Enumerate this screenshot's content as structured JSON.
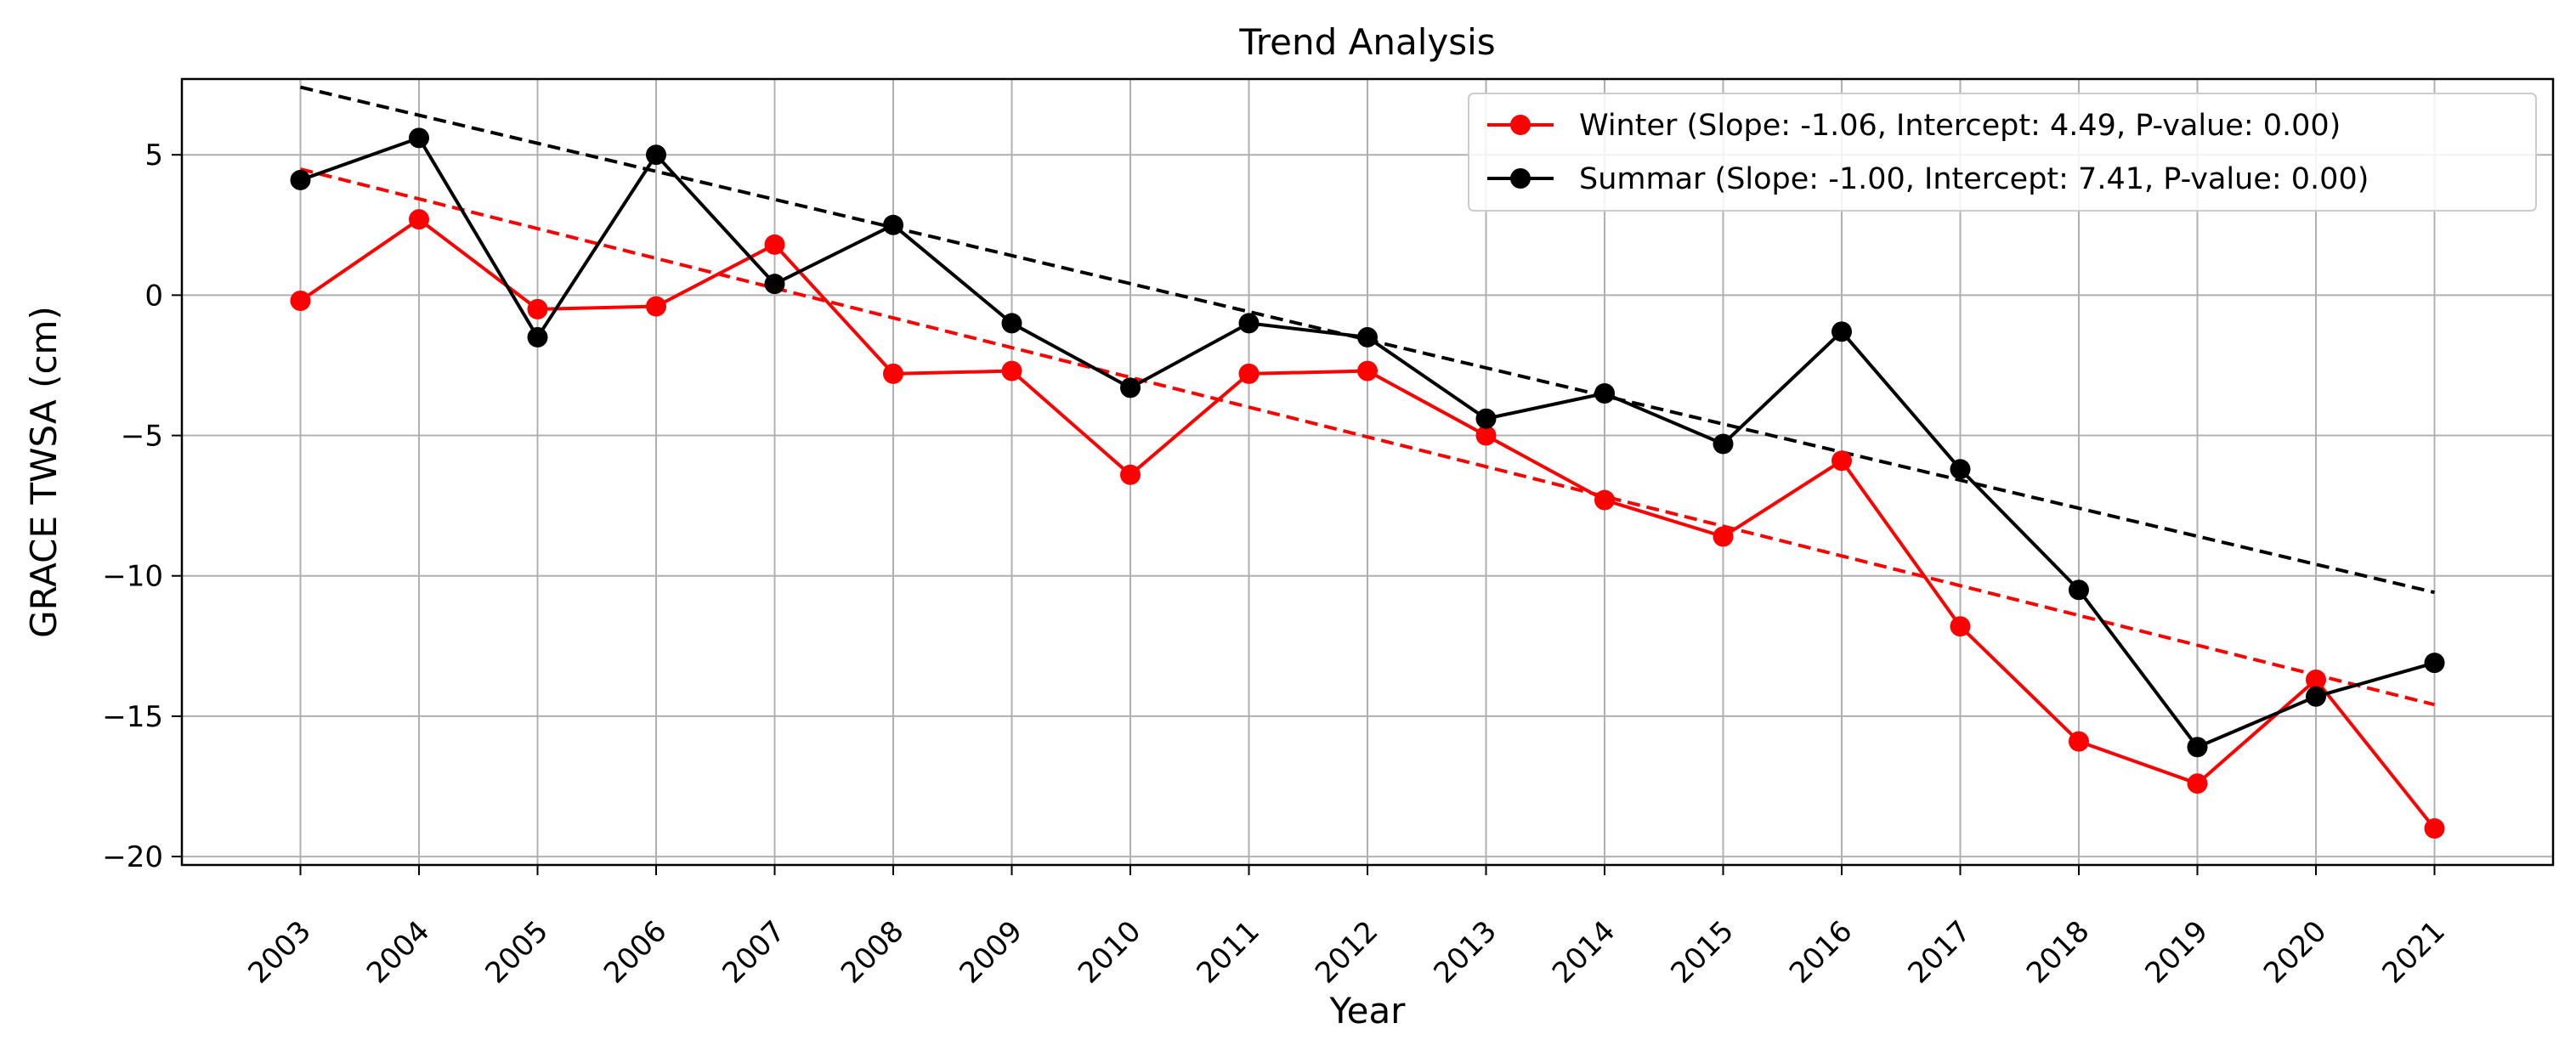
{
  "chart_data": {
    "type": "line",
    "title": "Trend Analysis",
    "xlabel": "Year",
    "ylabel": "GRACE TWSA (cm)",
    "x": [
      2003,
      2004,
      2005,
      2006,
      2007,
      2008,
      2009,
      2010,
      2011,
      2012,
      2013,
      2014,
      2015,
      2016,
      2017,
      2018,
      2019,
      2020,
      2021
    ],
    "x_tick_labels": [
      "2003",
      "2004",
      "2005",
      "2006",
      "2007",
      "2008",
      "2009",
      "2010",
      "2011",
      "2012",
      "2013",
      "2014",
      "2015",
      "2016",
      "2017",
      "2018",
      "2019",
      "2020",
      "2021"
    ],
    "y_ticks": [
      5,
      0,
      -5,
      -10,
      -15,
      -20
    ],
    "y_tick_labels": [
      "5",
      "0",
      "−5",
      "−10",
      "−15",
      "−20"
    ],
    "xlim": [
      2002.0,
      2022.0
    ],
    "ylim": [
      -20.3,
      7.7
    ],
    "grid": true,
    "legend_position": "top-right",
    "series": [
      {
        "name": "Winter (Slope: -1.06, Intercept: 4.49, P-value: 0.00)",
        "color": "#ff0000",
        "values": [
          -0.2,
          2.7,
          -0.5,
          -0.4,
          1.8,
          -2.8,
          -2.7,
          -6.4,
          -2.8,
          -2.7,
          -5.0,
          -7.3,
          -8.6,
          -5.9,
          -11.8,
          -15.9,
          -17.4,
          -13.7,
          -19.0
        ],
        "trend": {
          "slope": -1.06,
          "intercept": 4.49
        }
      },
      {
        "name": "Summar (Slope: -1.00, Intercept: 7.41, P-value: 0.00)",
        "color": "#000000",
        "values": [
          4.1,
          5.6,
          -1.5,
          5.0,
          0.4,
          2.5,
          -1.0,
          -3.3,
          -1.0,
          -1.5,
          -4.4,
          -3.5,
          -5.3,
          -1.3,
          -6.2,
          -10.5,
          -16.1,
          -14.3,
          -13.1
        ],
        "trend": {
          "slope": -1.0,
          "intercept": 7.41
        }
      }
    ]
  }
}
